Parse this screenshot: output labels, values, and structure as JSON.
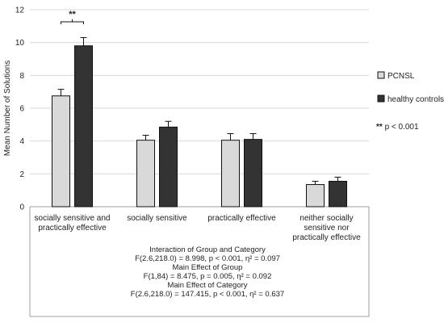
{
  "chart_data": {
    "type": "bar",
    "ylabel": "Mean Number of Solutions",
    "ylim": [
      0,
      12
    ],
    "yticks": [
      0,
      2,
      4,
      6,
      8,
      10,
      12
    ],
    "categories": [
      [
        "socially sensitive and",
        "practically effective"
      ],
      [
        "socially sensitive"
      ],
      [
        "practically effective"
      ],
      [
        "neither socially",
        "sensitive nor",
        "practically effective"
      ]
    ],
    "series": [
      {
        "name": "PCNSL",
        "color": "#d9d9d9",
        "values": [
          6.75,
          4.05,
          4.05,
          1.35
        ],
        "errors": [
          0.4,
          0.3,
          0.4,
          0.2
        ]
      },
      {
        "name": "healthy controls",
        "color": "#333333",
        "values": [
          9.8,
          4.85,
          4.1,
          1.55
        ],
        "errors": [
          0.5,
          0.35,
          0.35,
          0.25
        ]
      }
    ],
    "significance": {
      "stars": "**",
      "category_index": 0
    },
    "legend_note": {
      "stars": "**",
      "text": " p < 0.001"
    },
    "stats_annotation": [
      "Interaction of Group and Category",
      "F(2.6,218.0) = 8.998, p < 0.001, η² = 0.097",
      "Main Effect of Group",
      "F(1,84) = 8.475, p = 0.005, η² = 0.092",
      "Main Effect of Category",
      "F(2.6,218.0) = 147.415, p < 0.001, η² = 0.637"
    ]
  }
}
